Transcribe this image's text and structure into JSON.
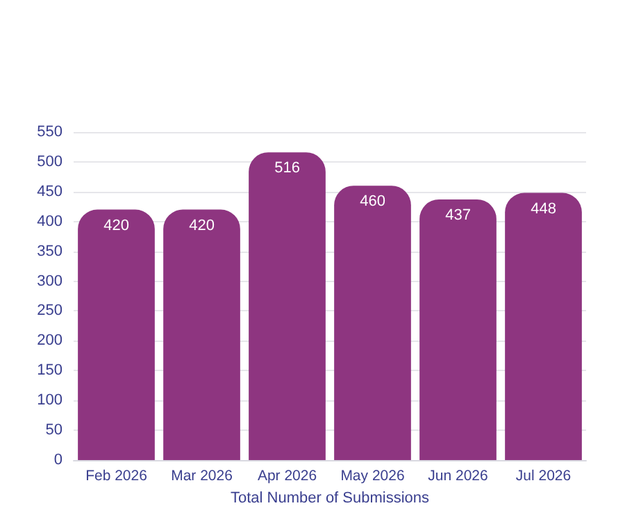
{
  "chart_data": {
    "type": "bar",
    "xlabel": "Total Number of Submissions",
    "categories": [
      "Feb 2026",
      "Mar 2026",
      "Apr 2026",
      "May 2026",
      "Jun 2026",
      "Jul 2026"
    ],
    "values": [
      420,
      420,
      516,
      460,
      437,
      448
    ],
    "color": "#8e3580",
    "ylim": [
      0,
      550
    ],
    "yticks": [
      0,
      50,
      100,
      150,
      200,
      250,
      300,
      350,
      400,
      450,
      500,
      550
    ],
    "grid": "y",
    "data_labels": true
  }
}
